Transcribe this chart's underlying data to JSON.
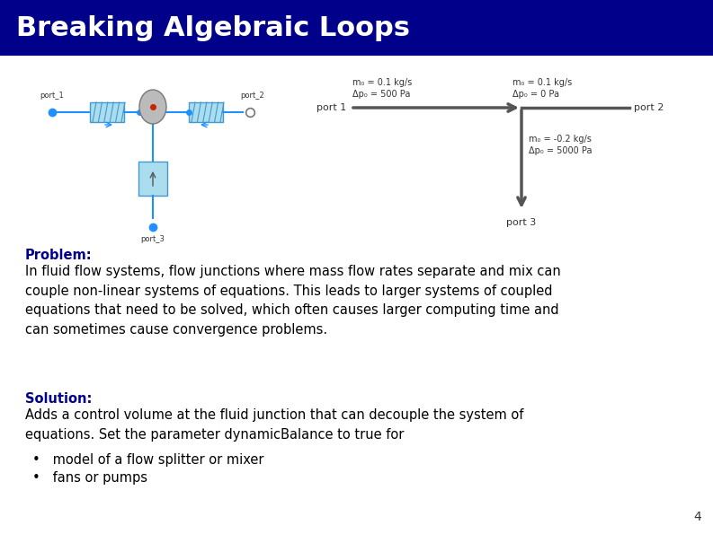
{
  "title": "Breaking Algebraic Loops",
  "title_bg_color": "#00008B",
  "title_text_color": "#FFFFFF",
  "title_fontsize": 22,
  "bg_color": "#FFFFFF",
  "problem_label": "Problem:",
  "problem_text": "In fluid flow systems, flow junctions where mass flow rates separate and mix can\ncouple non-linear systems of equations. This leads to larger systems of coupled\nequations that need to be solved, which often causes larger computing time and\ncan sometimes cause convergence problems.",
  "solution_label": "Solution:",
  "solution_text": "Adds a control volume at the fluid junction that can decouple the system of\nequations. Set the parameter dynamicBalance to true for",
  "bullet_points": [
    "model of a flow splitter or mixer",
    "fans or pumps"
  ],
  "label_color": "#00008B",
  "text_color": "#000000",
  "text_fontsize": 10.5,
  "label_fontsize": 10.5,
  "page_number": "4"
}
